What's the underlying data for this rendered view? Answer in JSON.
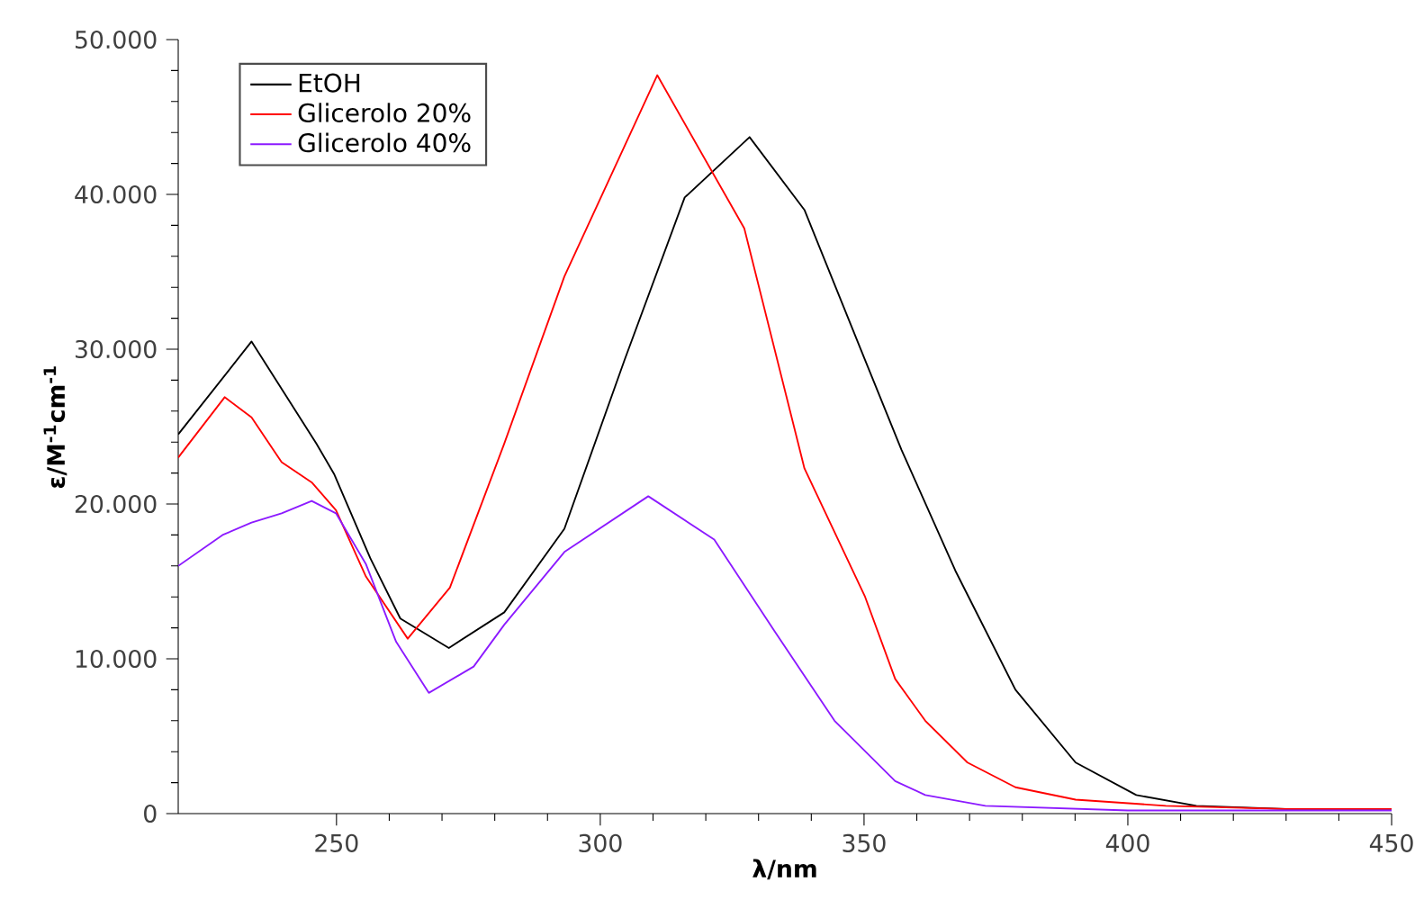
{
  "chart_data": {
    "type": "line",
    "xlabel": "λ/nm",
    "ylabel": "ε/M$^{-1}$cm$^{-1}$",
    "xlim": [
      220,
      450
    ],
    "ylim": [
      0,
      50000
    ],
    "xticks": [
      250,
      300,
      350,
      400,
      450
    ],
    "yticks": [
      {
        "value": 0,
        "label": "0"
      },
      {
        "value": 10000,
        "label": "10.000"
      },
      {
        "value": 20000,
        "label": "20.000"
      },
      {
        "value": 30000,
        "label": "30.000"
      },
      {
        "value": 40000,
        "label": "40.000"
      },
      {
        "value": 50000,
        "label": "50.000"
      }
    ],
    "legend": "top left",
    "grid": false,
    "marker": "none",
    "line_style": "solid",
    "series": [
      {
        "name": "EtOH",
        "color": "#000000",
        "x": [
          220,
          233.9,
          246.2,
          249.6,
          256.4,
          262.1,
          271.3,
          281.8,
          293.2,
          304.6,
          316.0,
          328.3,
          338.7,
          350.2,
          357.1,
          367.3,
          378.7,
          390.1,
          401.6,
          413,
          430,
          450
        ],
        "values": [
          24500,
          30500,
          23900,
          21900,
          16500,
          12600,
          10700,
          13000,
          18400,
          29300,
          39800,
          43700,
          39000,
          29300,
          23500,
          15700,
          8000,
          3300,
          1200,
          500,
          300,
          300
        ]
      },
      {
        "name": "Glicerolo 20%",
        "color": "#ff0000",
        "x": [
          220,
          228.8,
          233.9,
          239.6,
          245.3,
          249.9,
          255.6,
          263.5,
          271.5,
          281.8,
          293.2,
          310.8,
          327.3,
          338.7,
          350.2,
          355.9,
          361.6,
          369.6,
          378.7,
          390.1,
          407.2,
          430,
          450
        ],
        "values": [
          23000,
          26900,
          25600,
          22700,
          21400,
          19600,
          15300,
          11300,
          14600,
          23900,
          34700,
          47700,
          37800,
          22300,
          14000,
          8700,
          6000,
          3300,
          1700,
          900,
          500,
          300,
          300
        ]
      },
      {
        "name": "Glicerolo 40%",
        "color": "#8c1aff",
        "x": [
          220,
          228.4,
          233.9,
          239.6,
          245.3,
          249.9,
          255.6,
          261.3,
          267.5,
          276.0,
          281.8,
          293.2,
          309.1,
          321.6,
          333.0,
          344.4,
          355.9,
          361.6,
          373,
          400,
          450
        ],
        "values": [
          16000,
          18000,
          18800,
          19400,
          20200,
          19400,
          16100,
          11100,
          7800,
          9500,
          12200,
          16900,
          20500,
          17700,
          11800,
          6000,
          2100,
          1200,
          500,
          200,
          200
        ]
      }
    ]
  }
}
